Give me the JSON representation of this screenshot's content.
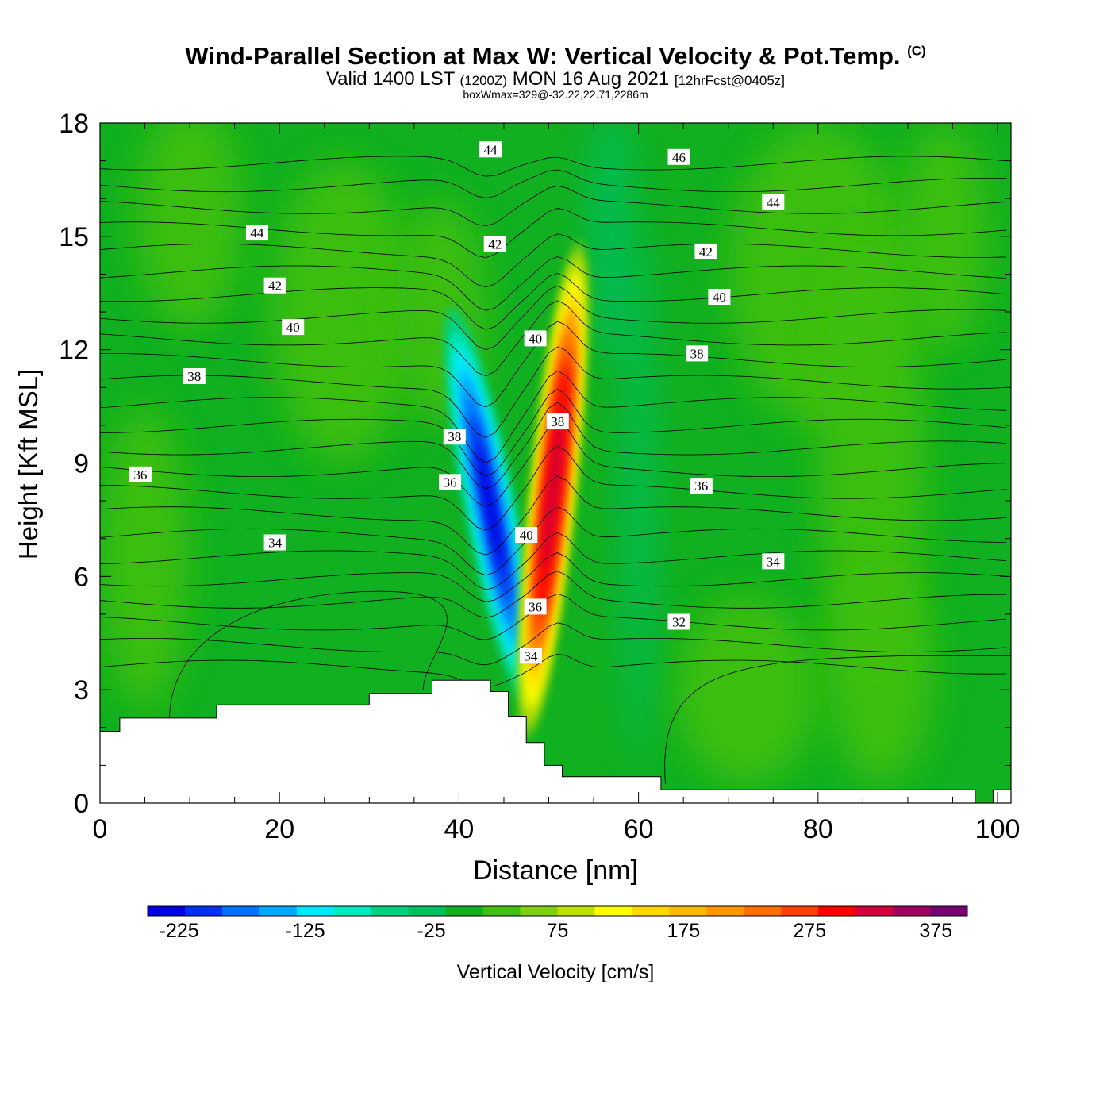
{
  "title": {
    "main": "Wind-Parallel Section at Max W: Vertical Velocity & Pot.Temp.",
    "copyright": "(C)",
    "valid_prefix": "Valid 1400 LST",
    "utc": "(1200Z)",
    "date": "MON 16 Aug 2021",
    "forecast": "[12hrFcst@0405z]",
    "boxwmax": "boxWmax=329@-32.22,22.71,2286m"
  },
  "chart_data": {
    "type": "heatmap",
    "xlabel": "Distance [nm]",
    "ylabel": "Height [Kft MSL]",
    "xlim": [
      0,
      101.5
    ],
    "ylim": [
      0,
      18
    ],
    "xticks": [
      0,
      20,
      40,
      60,
      80,
      100
    ],
    "yticks": [
      0,
      3,
      6,
      9,
      12,
      15,
      18
    ],
    "colorbar": {
      "label": "Vertical Velocity [cm/s]",
      "min": -250,
      "max": 400,
      "step": 25,
      "tick_labels": [
        "-225",
        "-125",
        "-25",
        "75",
        "175",
        "275",
        "375"
      ],
      "colors": [
        "#0000e0",
        "#0030f0",
        "#0070ff",
        "#00a8ff",
        "#00e8ff",
        "#00e8c0",
        "#00d080",
        "#00c060",
        "#10b020",
        "#40c010",
        "#80d010",
        "#c0e000",
        "#ffff00",
        "#ffd800",
        "#ffb800",
        "#ff9800",
        "#ff7000",
        "#ff4000",
        "#ff0000",
        "#d0003a",
        "#a00060",
        "#780070"
      ]
    },
    "terrain_profile": [
      [
        0,
        1.9
      ],
      [
        2.2,
        1.9
      ],
      [
        2.2,
        2.25
      ],
      [
        13,
        2.25
      ],
      [
        13,
        2.6
      ],
      [
        30,
        2.6
      ],
      [
        30,
        2.9
      ],
      [
        37,
        2.9
      ],
      [
        37,
        3.25
      ],
      [
        43.5,
        3.25
      ],
      [
        43.5,
        2.95
      ],
      [
        45.5,
        2.95
      ],
      [
        45.5,
        2.3
      ],
      [
        47.5,
        2.3
      ],
      [
        47.5,
        1.6
      ],
      [
        49.5,
        1.6
      ],
      [
        49.5,
        1.0
      ],
      [
        51.5,
        1.0
      ],
      [
        51.5,
        0.7
      ],
      [
        62.5,
        0.7
      ],
      [
        62.5,
        0.35
      ],
      [
        97.5,
        0.35
      ],
      [
        97.5,
        0
      ],
      [
        99.5,
        0
      ],
      [
        99.5,
        0.35
      ],
      [
        101.5,
        0.35
      ]
    ],
    "vertical_velocity_features": [
      {
        "name": "downdraft",
        "x": 44,
        "y": 7.2,
        "w_cm_s": -235
      },
      {
        "name": "updraft",
        "x": 50.5,
        "y": 7.0,
        "w_cm_s": 329
      }
    ],
    "theta_contour_labels": [
      {
        "value": "44",
        "x": 43.5,
        "y": 17.3
      },
      {
        "value": "46",
        "x": 64.5,
        "y": 17.1
      },
      {
        "value": "44",
        "x": 75,
        "y": 15.9
      },
      {
        "value": "44",
        "x": 17.5,
        "y": 15.1
      },
      {
        "value": "42",
        "x": 44,
        "y": 14.8
      },
      {
        "value": "42",
        "x": 67.5,
        "y": 14.6
      },
      {
        "value": "42",
        "x": 19.5,
        "y": 13.7
      },
      {
        "value": "40",
        "x": 69,
        "y": 13.4
      },
      {
        "value": "40",
        "x": 21.5,
        "y": 12.6
      },
      {
        "value": "40",
        "x": 48.5,
        "y": 12.3
      },
      {
        "value": "38",
        "x": 66.5,
        "y": 11.9
      },
      {
        "value": "38",
        "x": 10.5,
        "y": 11.3
      },
      {
        "value": "38",
        "x": 51,
        "y": 10.1
      },
      {
        "value": "38",
        "x": 39.5,
        "y": 9.7
      },
      {
        "value": "36",
        "x": 4.5,
        "y": 8.7
      },
      {
        "value": "36",
        "x": 39,
        "y": 8.5
      },
      {
        "value": "36",
        "x": 67,
        "y": 8.4
      },
      {
        "value": "40",
        "x": 47.5,
        "y": 7.1
      },
      {
        "value": "34",
        "x": 19.5,
        "y": 6.9
      },
      {
        "value": "34",
        "x": 75,
        "y": 6.4
      },
      {
        "value": "36",
        "x": 48.5,
        "y": 5.2
      },
      {
        "value": "32",
        "x": 64.5,
        "y": 4.8
      },
      {
        "value": "34",
        "x": 48,
        "y": 3.9
      }
    ],
    "theta_contour_count": 24
  }
}
